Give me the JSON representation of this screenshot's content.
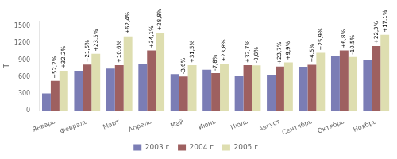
{
  "chart_data": {
    "type": "bar",
    "categories": [
      "Январь",
      "Февраль",
      "Март",
      "Апрель",
      "Май",
      "Июнь",
      "Июль",
      "Август",
      "Сентябрь",
      "Октябрь",
      "Ноябрь"
    ],
    "series": [
      {
        "name": "2003 г.",
        "color": "#7b7db5",
        "values": [
          310,
          710,
          750,
          830,
          650,
          730,
          620,
          640,
          780,
          980,
          900
        ]
      },
      {
        "name": "2004 г.",
        "color": "#9e6060",
        "values": [
          530,
          820,
          810,
          1070,
          610,
          670,
          810,
          785,
          815,
          1070,
          1150
        ],
        "annotations": [
          "+52,2%",
          "+21,5%",
          "+10,6%",
          "+34,1%",
          "-3,6%",
          "-7,8%",
          "+32,7%",
          "+23,7%",
          "+4,5%",
          "+6,8%",
          "+22,3%"
        ]
      },
      {
        "name": "2005 г.",
        "color": "#dedeb0",
        "values": [
          710,
          1010,
          1320,
          1380,
          810,
          830,
          805,
          860,
          1030,
          955,
          1350
        ],
        "annotations": [
          "+32,2%",
          "+23,5%",
          "+62,4%",
          "+28,8%",
          "+31,5%",
          "+23,8%",
          "-0,8%",
          "+9,9%",
          "+25,9%",
          "-10,5%",
          "+17,1%"
        ]
      }
    ],
    "ylabel": "Т",
    "ylim": [
      0,
      1600
    ],
    "yticks": [
      0,
      300,
      600,
      900,
      1200,
      1500
    ],
    "grid": false,
    "legend": "bottom"
  }
}
